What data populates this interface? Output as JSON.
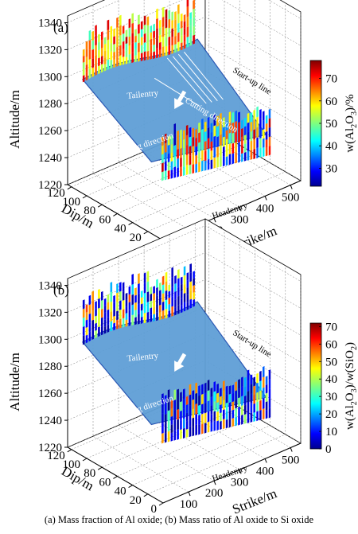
{
  "caption": "(a) Mass fraction of Al oxide; (b) Mass  ratio of Al oxide to Si oxide",
  "chart_data": [
    {
      "type": "3d-surface-bar",
      "panel_label": "(a)",
      "zlabel": "Altitude/m",
      "ylabel": "Dip/m",
      "xlabel": "Strike/m",
      "z_ticks": [
        "1220",
        "1240",
        "1260",
        "1280",
        "1300",
        "1320",
        "1340"
      ],
      "y_ticks": [
        "0",
        "20",
        "40",
        "60",
        "80",
        "100",
        "120"
      ],
      "x_ticks": [
        "100",
        "200",
        "300",
        "400",
        "500"
      ],
      "zlim": [
        1220,
        1345
      ],
      "ylim": [
        0,
        125
      ],
      "xlim": [
        0,
        540
      ],
      "colorbar": {
        "label_parts": [
          "w(Al",
          "2",
          "O",
          "3",
          ")/%"
        ],
        "ticks": [
          "30",
          "40",
          "50",
          "60",
          "70"
        ],
        "range": [
          22,
          78
        ]
      },
      "annotations": {
        "tailentry": "Tailentry",
        "cutting_direction": "Cutting direction",
        "startup_line": "Start-up line",
        "mining_direction": "Mining direction",
        "headentry": "Headentry"
      },
      "grid": true
    },
    {
      "type": "3d-surface-bar",
      "panel_label": "(b)",
      "zlabel": "Altitude/m",
      "ylabel": "Dip/m",
      "xlabel": "Strike/m",
      "z_ticks": [
        "1220",
        "1240",
        "1260",
        "1280",
        "1300",
        "1320",
        "1340"
      ],
      "y_ticks": [
        "0",
        "20",
        "40",
        "60",
        "80",
        "100",
        "120"
      ],
      "x_ticks": [
        "100",
        "200",
        "300",
        "400",
        "500"
      ],
      "zlim": [
        1220,
        1345
      ],
      "ylim": [
        0,
        125
      ],
      "xlim": [
        0,
        540
      ],
      "colorbar": {
        "label_parts": [
          "w(Al",
          "2",
          "O",
          "3",
          ")/w(SiO",
          "2",
          ")"
        ],
        "ticks": [
          "0",
          "10",
          "20",
          "30",
          "40",
          "50",
          "60",
          "70"
        ],
        "range": [
          0,
          72
        ]
      },
      "annotations": {
        "tailentry": "Tailentry",
        "startup_line": "Start-up line",
        "mining_direction": "Mining direction",
        "headentry": "Headentry"
      },
      "grid": true
    }
  ]
}
